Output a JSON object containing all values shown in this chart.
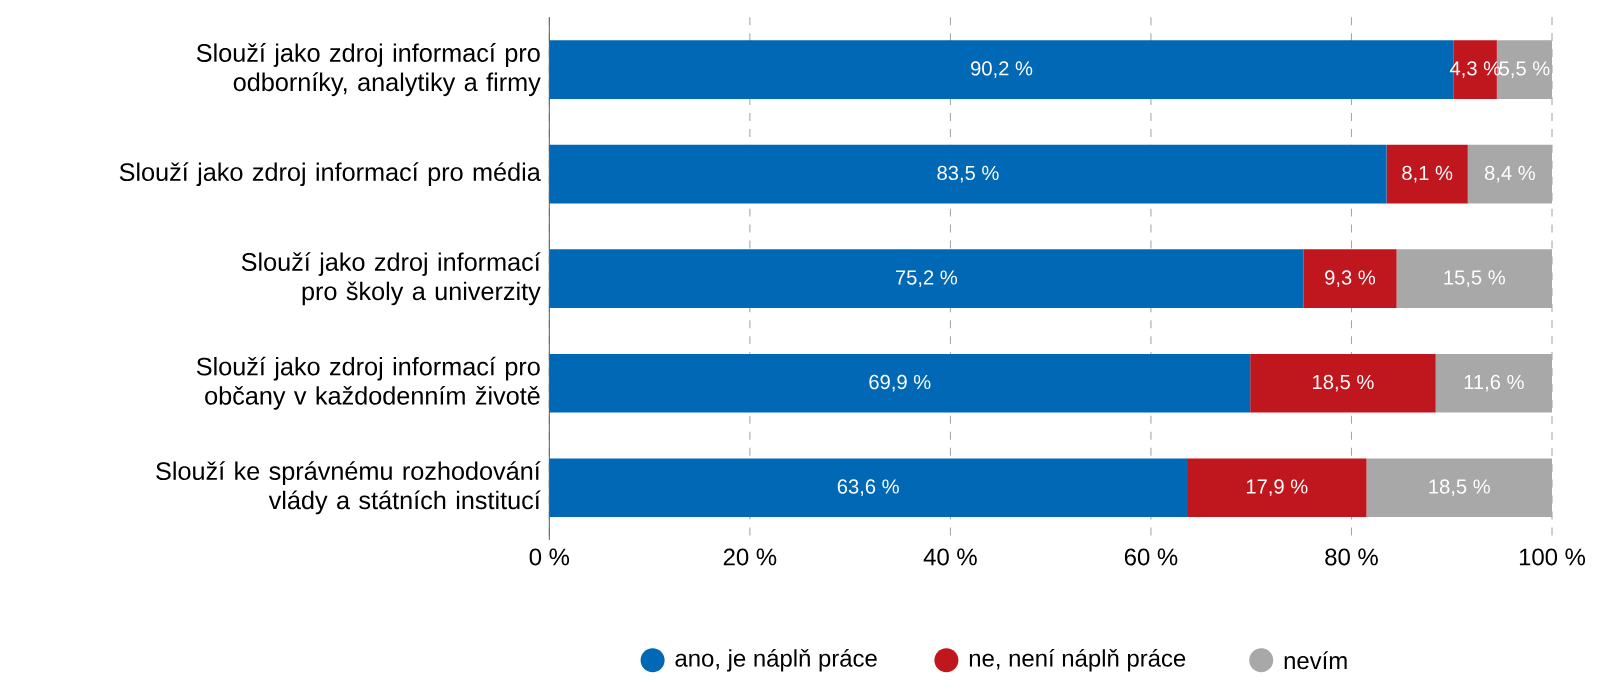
{
  "chart_data": {
    "type": "bar",
    "orientation": "horizontal",
    "stacked": true,
    "categories": [
      "Slouží jako zdroj informací pro odborníky, analytiky a firmy",
      "Slouží jako zdroj informací pro média",
      "Slouží jako zdroj informací pro školy a univerzity",
      "Slouží jako zdroj informací pro občany v každodenním životě",
      "Slouží ke správnému rozhodování vlády a státních institucí"
    ],
    "series": [
      {
        "name": "ano, je náplň práce",
        "color": "#0068b4",
        "values": [
          90.2,
          83.5,
          75.2,
          69.9,
          63.6
        ],
        "value_labels": [
          "90,2 %",
          "83,5 %",
          "75,2 %",
          "69,9 %",
          "63,6 %"
        ]
      },
      {
        "name": "ne, není náplň práce",
        "color": "#c0161d",
        "values": [
          4.3,
          8.1,
          9.3,
          18.5,
          17.9
        ],
        "value_labels": [
          "4,3 %",
          "8,1 %",
          "9,3 %",
          "18,5 %",
          "17,9 %"
        ]
      },
      {
        "name": "nevím",
        "color": "#a8a8a8",
        "values": [
          5.5,
          8.4,
          15.5,
          11.6,
          18.5
        ],
        "value_labels": [
          "5,5 %",
          "8,4 %",
          "15,5 %",
          "11,6 %",
          "18,5 %"
        ]
      }
    ],
    "xlim": [
      0,
      100
    ],
    "xticks": [
      {
        "value": 0,
        "label": "0 %"
      },
      {
        "value": 20,
        "label": "20 %"
      },
      {
        "value": 40,
        "label": "40 %"
      },
      {
        "value": 60,
        "label": "60 %"
      },
      {
        "value": 80,
        "label": "80 %"
      },
      {
        "value": 100,
        "label": "100 %"
      }
    ],
    "grid": "x",
    "legend": "bottom"
  }
}
